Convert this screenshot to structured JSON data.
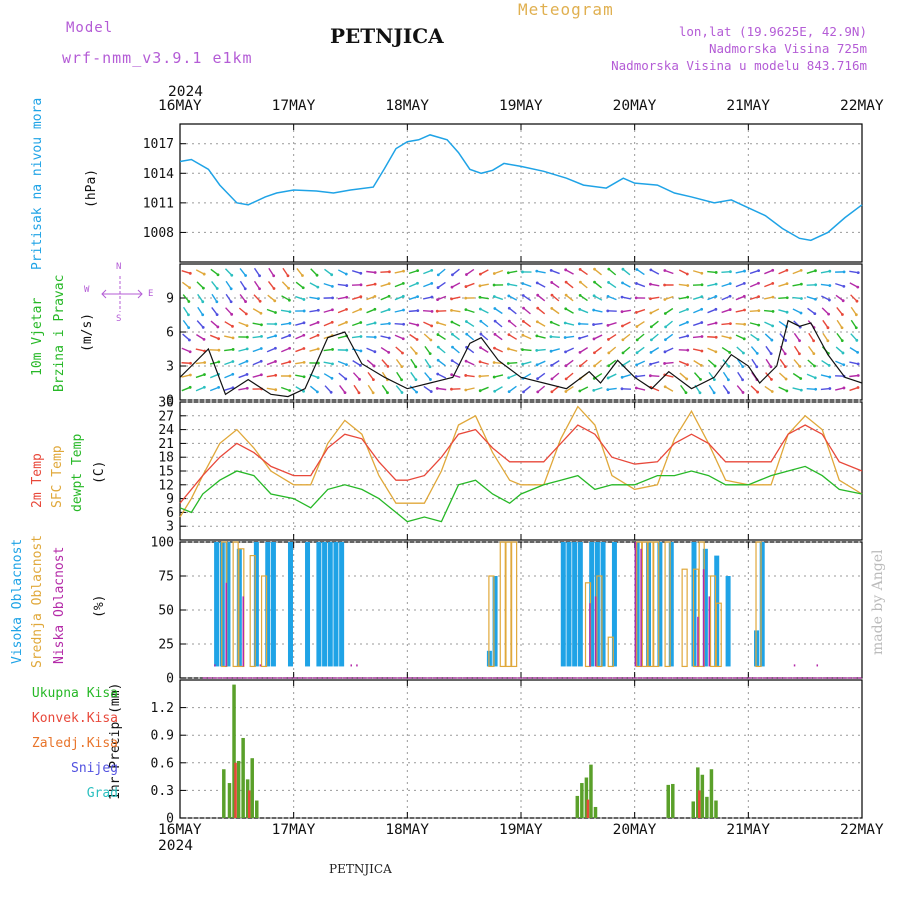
{
  "header": {
    "model_label": "Model",
    "model_name": "wrf-nmm_v3.9.1 e1km",
    "title": "PETNJICA",
    "subtitle": "Meteogram",
    "location_coords": "lon,lat (19.9625E, 42.9N)",
    "elevation": "Nadmorska Visina 725m",
    "model_elevation": "Nadmorska Visina u modelu 843.716m"
  },
  "footer": {
    "station": "PETNJICA",
    "credit": "made by Angel"
  },
  "time_axis": {
    "year": "2024",
    "labels": [
      "16MAY",
      "17MAY",
      "18MAY",
      "19MAY",
      "20MAY",
      "21MAY",
      "22MAY"
    ]
  },
  "colors": {
    "pressure": "#1fa3e6",
    "temp2m": "#e8483a",
    "sfc_temp": "#e0a83a",
    "dewpoint": "#27b827",
    "high_cloud": "#1fa3e6",
    "mid_cloud": "#e0a83a",
    "low_cloud": "#b42aa8",
    "total_precip": "#5aa02a",
    "conv_precip": "#e8483a",
    "frozen": "#e8742a",
    "snow": "#5050e0",
    "grad": "#2abfbf",
    "wind_speed": "#111111"
  },
  "panels": {
    "pressure": {
      "ylabel_main": "Pritisak na nivou mora",
      "ylabel_unit": "(hPa)"
    },
    "wind": {
      "ylabel_main": "10m Vjetar",
      "ylabel_sub": "Brzina i Pravac",
      "ylabel_unit": "(m/s)",
      "compass_n": "N",
      "compass_w": "W",
      "compass_e": "E",
      "compass_s": "S"
    },
    "temperature": {
      "label_t2m": "2m Temp",
      "label_sfc": "SFC Temp",
      "label_dew": "dewpt Temp",
      "ylabel_unit": "(C)"
    },
    "cloud": {
      "label_high": "Visoka Oblacnost",
      "label_mid": "Srednja Oblacnost",
      "label_low": "Niska Oblacnost",
      "ylabel_unit": "(%)"
    },
    "precip": {
      "ylabel": "1hr Precip (mm)",
      "legend": [
        "Ukupna Kisa",
        "Konvek.Kisa",
        "Zaledj.Kisa",
        "Snijeg",
        "Grad"
      ]
    }
  },
  "chart_data": [
    {
      "type": "line",
      "title": "",
      "ylabel": "Pritisak na nivou mora (hPa)",
      "x_unit": "days since 16MAY 00",
      "ylim": [
        1005,
        1019
      ],
      "yticks": [
        1008,
        1011,
        1014,
        1017
      ],
      "grid": true,
      "series": [
        {
          "name": "Pritisak na nivou mora",
          "x": [
            0,
            0.1,
            0.25,
            0.35,
            0.5,
            0.6,
            0.75,
            0.85,
            1.0,
            1.2,
            1.35,
            1.5,
            1.7,
            1.8,
            1.9,
            2.0,
            2.1,
            2.2,
            2.35,
            2.45,
            2.55,
            2.65,
            2.75,
            2.85,
            3.0,
            3.2,
            3.4,
            3.55,
            3.75,
            3.9,
            4.0,
            4.2,
            4.35,
            4.5,
            4.7,
            4.85,
            5.0,
            5.15,
            5.3,
            5.45,
            5.55,
            5.7,
            5.85,
            6.0
          ],
          "values": [
            1015.2,
            1015.4,
            1014.4,
            1012.8,
            1011.0,
            1010.8,
            1011.6,
            1012.0,
            1012.3,
            1012.2,
            1012.0,
            1012.3,
            1012.6,
            1014.5,
            1016.5,
            1017.2,
            1017.4,
            1017.9,
            1017.4,
            1016.1,
            1014.4,
            1014.0,
            1014.3,
            1015.0,
            1014.7,
            1014.2,
            1013.5,
            1012.8,
            1012.5,
            1013.5,
            1013.0,
            1012.8,
            1012.0,
            1011.6,
            1011.0,
            1011.3,
            1010.5,
            1009.7,
            1008.4,
            1007.4,
            1007.2,
            1008.0,
            1009.5,
            1010.8
          ]
        }
      ]
    },
    {
      "type": "line",
      "title": "",
      "ylabel": "10m Vjetar Brzina i Pravac (m/s)",
      "x_unit": "days since 16MAY 00",
      "ylim": [
        0,
        12
      ],
      "yticks": [
        0,
        3,
        6,
        9
      ],
      "grid": true,
      "series": [
        {
          "name": "Brzina",
          "x": [
            0,
            0.1,
            0.25,
            0.4,
            0.6,
            0.8,
            0.95,
            1.1,
            1.3,
            1.45,
            1.6,
            1.8,
            2.0,
            2.2,
            2.4,
            2.55,
            2.65,
            2.8,
            3.0,
            3.2,
            3.4,
            3.6,
            3.7,
            3.85,
            4.0,
            4.15,
            4.3,
            4.5,
            4.7,
            4.85,
            5.0,
            5.1,
            5.25,
            5.35,
            5.45,
            5.55,
            5.7,
            5.85,
            6.0
          ],
          "values": [
            2.0,
            3.0,
            4.5,
            0.5,
            1.8,
            0.5,
            0.3,
            1.0,
            5.5,
            6.0,
            3.2,
            2.0,
            1.0,
            1.5,
            2.0,
            5.0,
            5.5,
            3.5,
            2.0,
            1.5,
            1.0,
            2.5,
            1.5,
            3.5,
            2.0,
            1.0,
            2.5,
            1.0,
            2.0,
            4.0,
            3.0,
            1.5,
            3.0,
            7.0,
            6.5,
            6.8,
            4.0,
            2.0,
            1.5
          ]
        }
      ]
    },
    {
      "type": "line",
      "title": "",
      "ylabel": "Temp (C)",
      "x_unit": "days since 16MAY 00",
      "ylim": [
        0,
        30
      ],
      "yticks": [
        3,
        6,
        9,
        12,
        15,
        18,
        21,
        24,
        27,
        30
      ],
      "grid": true,
      "series": [
        {
          "name": "2m Temp",
          "x": [
            0,
            0.1,
            0.2,
            0.35,
            0.5,
            0.65,
            0.8,
            1.0,
            1.15,
            1.3,
            1.45,
            1.6,
            1.75,
            1.9,
            2.0,
            2.15,
            2.3,
            2.45,
            2.6,
            2.75,
            2.9,
            3.0,
            3.2,
            3.35,
            3.5,
            3.65,
            3.8,
            4.0,
            4.2,
            4.35,
            4.5,
            4.65,
            4.8,
            5.0,
            5.2,
            5.35,
            5.5,
            5.65,
            5.8,
            6.0
          ],
          "values": [
            8,
            11,
            14,
            18,
            21,
            19,
            16,
            14,
            14,
            20,
            23,
            22,
            17,
            13,
            13,
            14,
            18,
            23,
            24,
            20,
            17,
            17,
            17,
            21,
            25,
            23,
            18,
            16.5,
            17,
            21,
            23,
            21,
            17,
            17,
            17,
            23,
            25,
            23,
            17,
            15
          ]
        },
        {
          "name": "SFC Temp",
          "x": [
            0,
            0.1,
            0.2,
            0.35,
            0.5,
            0.65,
            0.8,
            1.0,
            1.15,
            1.3,
            1.45,
            1.6,
            1.75,
            1.9,
            2.0,
            2.15,
            2.3,
            2.45,
            2.6,
            2.75,
            2.9,
            3.0,
            3.2,
            3.35,
            3.5,
            3.65,
            3.8,
            4.0,
            4.2,
            4.35,
            4.5,
            4.65,
            4.8,
            5.0,
            5.2,
            5.35,
            5.5,
            5.65,
            5.8,
            6.0
          ],
          "values": [
            5,
            9,
            14,
            21,
            24,
            20,
            15,
            12,
            12,
            21,
            26,
            23,
            14,
            8,
            8,
            8,
            15,
            25,
            27,
            19,
            13,
            12,
            12,
            22,
            29,
            25,
            14,
            11,
            12,
            22,
            28,
            21,
            13,
            12,
            12,
            23,
            27,
            24,
            13,
            10
          ]
        },
        {
          "name": "dewpt Temp",
          "x": [
            0,
            0.1,
            0.2,
            0.35,
            0.5,
            0.65,
            0.8,
            1.0,
            1.15,
            1.3,
            1.45,
            1.6,
            1.75,
            1.9,
            2.0,
            2.15,
            2.3,
            2.45,
            2.6,
            2.75,
            2.9,
            3.0,
            3.2,
            3.35,
            3.5,
            3.65,
            3.8,
            4.0,
            4.2,
            4.35,
            4.5,
            4.65,
            4.8,
            5.0,
            5.2,
            5.35,
            5.5,
            5.65,
            5.8,
            6.0
          ],
          "values": [
            7,
            6,
            10,
            13,
            15,
            14,
            10,
            9,
            7,
            11,
            12,
            11,
            9,
            6,
            4,
            5,
            4,
            12,
            13,
            10,
            8,
            10,
            12,
            13,
            14,
            11,
            12,
            12,
            14,
            14,
            15,
            14,
            12,
            12,
            14,
            15,
            16,
            14,
            11,
            10
          ]
        }
      ]
    },
    {
      "type": "bar",
      "title": "",
      "ylabel": "Oblacnost (%)",
      "x_unit": "days since 16MAY 00",
      "ylim": [
        0,
        100
      ],
      "yticks": [
        0,
        25,
        50,
        75,
        100
      ],
      "grid": true,
      "series": [
        {
          "name": "Visoka Oblacnost",
          "x": [
            0.3,
            0.35,
            0.4,
            0.5,
            0.65,
            0.75,
            0.8,
            0.95,
            1.1,
            1.2,
            1.25,
            1.3,
            1.35,
            1.4,
            2.7,
            2.75,
            3.35,
            3.4,
            3.45,
            3.5,
            3.6,
            3.65,
            3.7,
            3.8,
            4.0,
            4.1,
            4.2,
            4.3,
            4.5,
            4.6,
            4.7,
            4.8,
            5.05,
            5.1
          ],
          "values": [
            100,
            100,
            100,
            95,
            100,
            100,
            100,
            100,
            100,
            100,
            100,
            100,
            100,
            100,
            20,
            75,
            100,
            100,
            100,
            100,
            100,
            100,
            100,
            100,
            100,
            100,
            100,
            100,
            100,
            95,
            90,
            75,
            35,
            100
          ]
        },
        {
          "name": "Srednja Oblacnost",
          "x": [
            0.35,
            0.45,
            0.5,
            0.6,
            0.7,
            2.7,
            2.8,
            2.85,
            2.9,
            3.55,
            3.65,
            3.75,
            4.0,
            4.05,
            4.1,
            4.15,
            4.25,
            4.4,
            4.5,
            4.55,
            4.65,
            4.7,
            5.05
          ],
          "values": [
            100,
            100,
            95,
            90,
            75,
            75,
            100,
            100,
            100,
            70,
            75,
            30,
            100,
            100,
            100,
            100,
            100,
            80,
            80,
            100,
            75,
            55,
            100
          ]
        },
        {
          "name": "Niska Oblacnost",
          "x": [
            0.3,
            0.4,
            0.55,
            0.7,
            1.5,
            1.55,
            2.5,
            3.6,
            3.65,
            4.0,
            4.05,
            4.55,
            4.6,
            4.65,
            5.4,
            5.6
          ],
          "values": [
            10,
            70,
            60,
            10,
            10,
            10,
            8,
            55,
            60,
            100,
            95,
            45,
            80,
            60,
            10,
            10
          ]
        }
      ]
    },
    {
      "type": "bar",
      "title": "",
      "ylabel": "1hr Precip (mm)",
      "x_unit": "days since 16MAY 00",
      "ylim": [
        0,
        1.5
      ],
      "yticks": [
        0,
        0.3,
        0.6,
        0.9,
        1.2
      ],
      "grid": true,
      "series": [
        {
          "name": "Ukupna Kisa",
          "x": [
            0.37,
            0.42,
            0.46,
            0.5,
            0.54,
            0.58,
            0.62,
            0.66,
            3.48,
            3.52,
            3.56,
            3.6,
            3.64,
            4.28,
            4.32,
            4.5,
            4.54,
            4.58,
            4.62,
            4.66,
            4.7
          ],
          "values": [
            0.53,
            0.38,
            1.45,
            0.62,
            0.87,
            0.42,
            0.65,
            0.19,
            0.24,
            0.38,
            0.44,
            0.58,
            0.12,
            0.36,
            0.37,
            0.18,
            0.55,
            0.47,
            0.23,
            0.53,
            0.19
          ]
        },
        {
          "name": "Konvek.Kisa",
          "x": [
            0.46,
            0.58,
            3.56,
            4.54
          ],
          "values": [
            0.6,
            0.3,
            0.2,
            0.3
          ]
        },
        {
          "name": "Zaledj.Kisa",
          "x": [],
          "values": []
        },
        {
          "name": "Snijeg",
          "x": [],
          "values": []
        },
        {
          "name": "Grad",
          "x": [],
          "values": []
        }
      ]
    }
  ]
}
